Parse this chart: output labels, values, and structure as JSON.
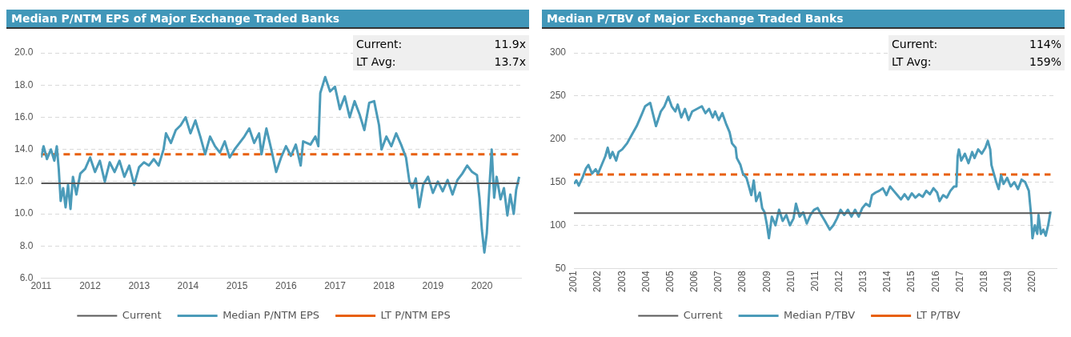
{
  "chart_data": [
    {
      "type": "line",
      "title": "Median P/NTM EPS of Major Exchange Traded Banks",
      "annotations": [
        "Current:",
        "11.9x",
        "LT Avg:",
        "13.7x"
      ],
      "xlim": [
        2011,
        2020.8
      ],
      "xticks": [
        2011,
        2012,
        2013,
        2014,
        2015,
        2016,
        2017,
        2018,
        2019,
        2020
      ],
      "ylim": [
        6,
        20
      ],
      "yticks": [
        {
          "value": 6,
          "label": "6.0"
        },
        {
          "value": 8,
          "label": "8.0"
        },
        {
          "value": 10,
          "label": "10.0"
        },
        {
          "value": 12,
          "label": "12.0"
        },
        {
          "value": 14,
          "label": "14.0"
        },
        {
          "value": 16,
          "label": "16.0"
        },
        {
          "value": 18,
          "label": "18.0"
        },
        {
          "value": 20,
          "label": "20.0"
        }
      ],
      "grid": "y",
      "legend": "bottom",
      "marker": "none",
      "series": [
        {
          "name": "Current",
          "color": "#595959",
          "line_style": "solid",
          "x": [
            2011,
            2020.76
          ],
          "values": [
            11.9,
            11.9
          ]
        },
        {
          "name": "Median P/NTM EPS",
          "color": "#4b9bb9",
          "line_style": "solid",
          "x": [
            2011.0,
            2011.05,
            2011.12,
            2011.2,
            2011.27,
            2011.32,
            2011.36,
            2011.4,
            2011.45,
            2011.5,
            2011.55,
            2011.6,
            2011.65,
            2011.72,
            2011.8,
            2011.9,
            2012.0,
            2012.1,
            2012.2,
            2012.3,
            2012.4,
            2012.5,
            2012.6,
            2012.7,
            2012.8,
            2012.9,
            2013.0,
            2013.1,
            2013.2,
            2013.3,
            2013.4,
            2013.5,
            2013.55,
            2013.65,
            2013.75,
            2013.85,
            2013.95,
            2014.05,
            2014.15,
            2014.25,
            2014.35,
            2014.45,
            2014.55,
            2014.65,
            2014.75,
            2014.85,
            2014.95,
            2015.05,
            2015.15,
            2015.25,
            2015.35,
            2015.45,
            2015.5,
            2015.6,
            2015.7,
            2015.8,
            2015.9,
            2016.0,
            2016.1,
            2016.2,
            2016.3,
            2016.35,
            2016.5,
            2016.6,
            2016.66,
            2016.7,
            2016.8,
            2016.9,
            2017.0,
            2017.1,
            2017.2,
            2017.3,
            2017.4,
            2017.5,
            2017.6,
            2017.7,
            2017.8,
            2017.9,
            2017.95,
            2018.05,
            2018.15,
            2018.25,
            2018.35,
            2018.45,
            2018.52,
            2018.58,
            2018.65,
            2018.72,
            2018.8,
            2018.9,
            2019.0,
            2019.1,
            2019.2,
            2019.3,
            2019.4,
            2019.5,
            2019.6,
            2019.7,
            2019.8,
            2019.9,
            2019.95,
            2020.0,
            2020.05,
            2020.1,
            2020.15,
            2020.2,
            2020.25,
            2020.3,
            2020.38,
            2020.45,
            2020.52,
            2020.58,
            2020.65,
            2020.7,
            2020.76
          ],
          "values": [
            13.5,
            14.2,
            13.4,
            14.0,
            13.3,
            14.2,
            12.8,
            10.8,
            11.6,
            10.4,
            11.8,
            10.3,
            12.3,
            11.2,
            12.5,
            12.8,
            13.5,
            12.6,
            13.3,
            12.0,
            13.2,
            12.6,
            13.3,
            12.3,
            13.0,
            11.8,
            12.9,
            13.2,
            13.0,
            13.4,
            13.0,
            14.0,
            15.0,
            14.4,
            15.2,
            15.5,
            16.0,
            15.0,
            15.8,
            14.8,
            13.7,
            14.8,
            14.2,
            13.8,
            14.5,
            13.5,
            14.0,
            14.4,
            14.8,
            15.3,
            14.4,
            15.0,
            13.7,
            15.3,
            14.0,
            12.6,
            13.5,
            14.2,
            13.6,
            14.3,
            13.0,
            14.5,
            14.3,
            14.8,
            14.2,
            17.5,
            18.5,
            17.6,
            17.9,
            16.5,
            17.3,
            16.0,
            17.0,
            16.2,
            15.2,
            16.9,
            17.0,
            15.5,
            14.0,
            14.8,
            14.2,
            15.0,
            14.3,
            13.5,
            12.0,
            11.6,
            12.2,
            10.4,
            11.8,
            12.3,
            11.3,
            12.0,
            11.4,
            12.1,
            11.2,
            12.1,
            12.5,
            13.0,
            12.6,
            12.4,
            11.0,
            9.0,
            7.6,
            8.8,
            11.5,
            14.0,
            11.0,
            12.3,
            10.9,
            11.6,
            9.9,
            11.2,
            10.0,
            11.5,
            12.3
          ]
        },
        {
          "name": "LT P/NTM EPS",
          "color": "#e8600c",
          "line_style": "dashed",
          "x": [
            2011,
            2020.76
          ],
          "values": [
            13.7,
            13.7
          ]
        }
      ]
    },
    {
      "type": "line",
      "title": "Median P/TBV of Major Exchange Traded Banks",
      "annotations": [
        "Current:",
        "114%",
        "LT Avg:",
        "159%"
      ],
      "xlim": [
        2001,
        2021
      ],
      "xticks": [
        2001,
        2002,
        2003,
        2004,
        2005,
        2006,
        2007,
        2008,
        2009,
        2010,
        2011,
        2012,
        2013,
        2014,
        2015,
        2016,
        2017,
        2018,
        2019,
        2020
      ],
      "ylim": [
        50,
        300
      ],
      "yticks": [
        50,
        100,
        150,
        200,
        250,
        300
      ],
      "grid": "y",
      "legend": "bottom",
      "marker": "none",
      "series": [
        {
          "name": "Current",
          "color": "#595959",
          "line_style": "solid",
          "x": [
            2001,
            2020.75
          ],
          "values": [
            114,
            114
          ]
        },
        {
          "name": "Median P/TBV",
          "color": "#4b9bb9",
          "line_style": "solid",
          "x": [
            2001.0,
            2001.1,
            2001.2,
            2001.35,
            2001.5,
            2001.6,
            2001.75,
            2001.9,
            2002.0,
            2002.15,
            2002.3,
            2002.4,
            2002.5,
            2002.6,
            2002.75,
            2002.85,
            2003.0,
            2003.2,
            2003.4,
            2003.6,
            2003.8,
            2003.95,
            2004.16,
            2004.4,
            2004.6,
            2004.75,
            2004.91,
            2005.05,
            2005.2,
            2005.3,
            2005.45,
            2005.6,
            2005.75,
            2005.9,
            2006.1,
            2006.3,
            2006.45,
            2006.6,
            2006.75,
            2006.85,
            2007.0,
            2007.15,
            2007.3,
            2007.45,
            2007.55,
            2007.7,
            2007.75,
            2007.9,
            2008.0,
            2008.15,
            2008.25,
            2008.35,
            2008.45,
            2008.55,
            2008.7,
            2008.8,
            2008.9,
            2009.0,
            2009.08,
            2009.2,
            2009.35,
            2009.5,
            2009.65,
            2009.8,
            2009.95,
            2010.1,
            2010.2,
            2010.35,
            2010.5,
            2010.65,
            2010.8,
            2010.95,
            2011.1,
            2011.25,
            2011.4,
            2011.5,
            2011.6,
            2011.75,
            2011.9,
            2012.05,
            2012.2,
            2012.35,
            2012.5,
            2012.65,
            2012.8,
            2012.95,
            2013.1,
            2013.25,
            2013.35,
            2013.5,
            2013.65,
            2013.8,
            2013.95,
            2014.1,
            2014.25,
            2014.4,
            2014.55,
            2014.7,
            2014.85,
            2015.0,
            2015.15,
            2015.3,
            2015.45,
            2015.6,
            2015.75,
            2015.9,
            2016.05,
            2016.15,
            2016.3,
            2016.45,
            2016.6,
            2016.75,
            2016.85,
            2016.9,
            2016.95,
            2017.05,
            2017.2,
            2017.35,
            2017.5,
            2017.6,
            2017.75,
            2017.9,
            2018.05,
            2018.15,
            2018.25,
            2018.3,
            2018.4,
            2018.5,
            2018.6,
            2018.7,
            2018.8,
            2018.95,
            2019.1,
            2019.25,
            2019.4,
            2019.55,
            2019.7,
            2019.85,
            2019.95,
            2020.0,
            2020.1,
            2020.2,
            2020.25,
            2020.35,
            2020.45,
            2020.55,
            2020.65,
            2020.75
          ],
          "values": [
            148,
            152,
            146,
            155,
            166,
            170,
            160,
            165,
            160,
            170,
            180,
            190,
            178,
            185,
            175,
            185,
            188,
            195,
            205,
            215,
            228,
            238,
            242,
            215,
            232,
            238,
            249,
            238,
            232,
            240,
            225,
            235,
            222,
            232,
            235,
            238,
            230,
            235,
            225,
            232,
            222,
            230,
            218,
            208,
            195,
            190,
            178,
            170,
            160,
            155,
            145,
            135,
            152,
            128,
            138,
            120,
            115,
            100,
            85,
            110,
            100,
            118,
            105,
            112,
            100,
            108,
            125,
            110,
            115,
            102,
            112,
            118,
            120,
            112,
            105,
            100,
            95,
            100,
            108,
            118,
            112,
            118,
            110,
            118,
            110,
            120,
            125,
            122,
            135,
            138,
            140,
            143,
            135,
            145,
            140,
            135,
            130,
            136,
            130,
            137,
            132,
            136,
            133,
            140,
            136,
            143,
            138,
            128,
            135,
            132,
            140,
            145,
            145,
            180,
            188,
            175,
            183,
            172,
            185,
            178,
            188,
            183,
            190,
            198,
            188,
            170,
            160,
            150,
            142,
            158,
            148,
            155,
            145,
            150,
            142,
            153,
            150,
            140,
            110,
            85,
            100,
            90,
            112,
            90,
            95,
            88,
            100,
            116
          ]
        },
        {
          "name": "LT P/TBV",
          "color": "#e8600c",
          "line_style": "dashed",
          "x": [
            2001,
            2020.75
          ],
          "values": [
            159,
            159
          ]
        }
      ]
    }
  ]
}
